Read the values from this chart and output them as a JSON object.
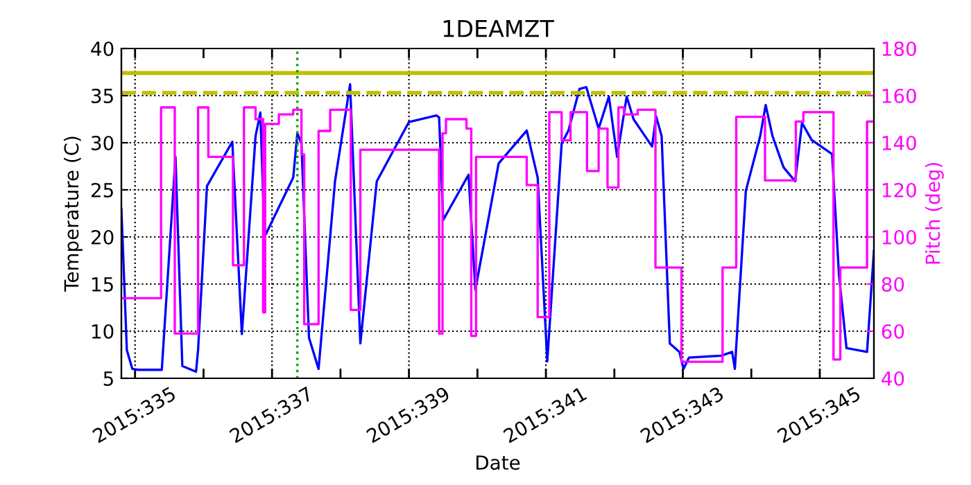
{
  "chart_data": {
    "type": "line",
    "title": "1DEAMZT",
    "xlabel": "Date",
    "ylabel": "Temperature (C)",
    "y2label": "Pitch (deg)",
    "xlim": [
      "2015-11-30T19:12",
      "2015-12-11T18:58"
    ],
    "ylim": [
      5,
      40
    ],
    "y2lim": [
      40,
      180
    ],
    "xticks": [
      {
        "value": "2015-12-01",
        "label": "2015:335"
      },
      {
        "value": "2015-12-02",
        "label": null
      },
      {
        "value": "2015-12-03",
        "label": "2015:337"
      },
      {
        "value": "2015-12-04",
        "label": null
      },
      {
        "value": "2015-12-05",
        "label": "2015:339"
      },
      {
        "value": "2015-12-06",
        "label": null
      },
      {
        "value": "2015-12-07",
        "label": "2015:341"
      },
      {
        "value": "2015-12-08",
        "label": null
      },
      {
        "value": "2015-12-09",
        "label": "2015:343"
      },
      {
        "value": "2015-12-10",
        "label": null
      },
      {
        "value": "2015-12-11",
        "label": "2015:345"
      }
    ],
    "yticks": [
      5,
      10,
      15,
      20,
      25,
      30,
      35,
      40
    ],
    "y2ticks": [
      40,
      60,
      80,
      100,
      120,
      140,
      160,
      180
    ],
    "grid": true,
    "line_style": "solid",
    "marker": "none",
    "series": [
      {
        "color": "#0000ff",
        "x": [
          "2015-11-30T19:12",
          "2015-11-30T21:07",
          "2015-11-30T23:02",
          "2015-12-01T00:58",
          "2015-12-01T09:22",
          "2015-12-01T14:10",
          "2015-12-01T16:34",
          "2015-12-01T21:22",
          "2015-12-01T22:05",
          "2015-12-02T01:12",
          "2015-12-02T10:05",
          "2015-12-02T13:26",
          "2015-12-02T18:14",
          "2015-12-02T19:55",
          "2015-12-02T21:22",
          "2015-12-03T07:26",
          "2015-12-03T08:53",
          "2015-12-03T10:19",
          "2015-12-03T12:58",
          "2015-12-03T16:19",
          "2015-12-03T22:05",
          "2015-12-04T03:22",
          "2015-12-04T06:58",
          "2015-12-04T12:43",
          "2015-12-05T00:00",
          "2015-12-05T09:36",
          "2015-12-05T10:34",
          "2015-12-05T12:00",
          "2015-12-05T20:53",
          "2015-12-05T23:17",
          "2015-12-06T07:26",
          "2015-12-06T17:17",
          "2015-12-06T21:07",
          "2015-12-07T00:29",
          "2015-12-07T05:31",
          "2015-12-07T07:55",
          "2015-12-07T11:46",
          "2015-12-07T14:10",
          "2015-12-07T18:29",
          "2015-12-07T22:05",
          "2015-12-08T00:58",
          "2015-12-08T04:19",
          "2015-12-08T06:43",
          "2015-12-08T13:12",
          "2015-12-08T14:38",
          "2015-12-08T16:34",
          "2015-12-08T19:26",
          "2015-12-08T22:48",
          "2015-12-09T00:14",
          "2015-12-09T02:10",
          "2015-12-09T13:26",
          "2015-12-09T17:17",
          "2015-12-09T18:14",
          "2015-12-09T22:05",
          "2015-12-10T03:07",
          "2015-12-10T05:02",
          "2015-12-10T07:26",
          "2015-12-10T11:17",
          "2015-12-10T15:22",
          "2015-12-10T17:46",
          "2015-12-10T21:07",
          "2015-12-11T04:19",
          "2015-12-11T06:43",
          "2015-12-11T09:22",
          "2015-12-11T16:34",
          "2015-12-11T18:58"
        ],
        "values": [
          23,
          8,
          6,
          5.9,
          5.9,
          28.5,
          6.3,
          5.7,
          8,
          25.4,
          30.1,
          9.7,
          30.7,
          33.2,
          20,
          26.3,
          31,
          29.9,
          9.3,
          6,
          25.9,
          36.2,
          8.7,
          25.9,
          32.2,
          32.9,
          32.7,
          21.8,
          26.6,
          14.4,
          27.8,
          31.3,
          26.3,
          6.8,
          29.9,
          31.3,
          35.7,
          35.9,
          31.5,
          34.9,
          28.5,
          34.9,
          32.5,
          29.6,
          32.8,
          30.7,
          8.7,
          7.8,
          6,
          7.2,
          7.4,
          7.8,
          6,
          24.9,
          30.7,
          34,
          30.7,
          27.4,
          25.9,
          32.1,
          30.3,
          28.8,
          16,
          8.2,
          7.8,
          18.5
        ]
      },
      {
        "type": "step",
        "axis": "y2",
        "color": "#ff00ff",
        "x": [
          "2015-11-30T19:12",
          "2015-12-01T09:07",
          "2015-12-01T13:55",
          "2015-12-01T22:05",
          "2015-12-02T01:41",
          "2015-12-02T10:19",
          "2015-12-02T14:10",
          "2015-12-02T18:14",
          "2015-12-02T20:53",
          "2015-12-02T21:36",
          "2015-12-03T02:24",
          "2015-12-03T07:26",
          "2015-12-03T10:19",
          "2015-12-03T11:17",
          "2015-12-03T16:19",
          "2015-12-03T20:24",
          "2015-12-04T03:36",
          "2015-12-04T06:58",
          "2015-12-05T10:34",
          "2015-12-05T11:46",
          "2015-12-05T12:58",
          "2015-12-05T20:10",
          "2015-12-05T21:50",
          "2015-12-05T23:31",
          "2015-12-06T17:17",
          "2015-12-06T21:07",
          "2015-12-07T01:12",
          "2015-12-07T05:31",
          "2015-12-07T08:38",
          "2015-12-07T14:24",
          "2015-12-07T18:29",
          "2015-12-07T21:36",
          "2015-12-08T01:26",
          "2015-12-08T03:22",
          "2015-12-08T08:10",
          "2015-12-08T14:24",
          "2015-12-08T23:31",
          "2015-12-09T13:55",
          "2015-12-09T18:43",
          "2015-12-10T04:48",
          "2015-12-10T15:36",
          "2015-12-10T18:14",
          "2015-12-11T04:48",
          "2015-12-11T07:12",
          "2015-12-11T16:34",
          "2015-12-11T18:58"
        ],
        "values": [
          74,
          155,
          59,
          155,
          134,
          88,
          155,
          150,
          68,
          148,
          152,
          154,
          135,
          63,
          145,
          154,
          69,
          137,
          59,
          144,
          150,
          146,
          58,
          134,
          122,
          66,
          153,
          141,
          153,
          128,
          146,
          121,
          155,
          152,
          154,
          87,
          47,
          87,
          151,
          124,
          149,
          153,
          48,
          87,
          149,
          149
        ]
      }
    ],
    "ref_lines": [
      {
        "axis": "y",
        "value": 37.4,
        "color": "#bfbf00",
        "line_style": "solid"
      },
      {
        "axis": "y",
        "value": 35.3,
        "color": "#bfbf00",
        "line_style": "dashed"
      },
      {
        "axis": "x",
        "value": "2015-12-03T08:53",
        "color": "#00a000",
        "line_style": "dotted"
      }
    ]
  }
}
